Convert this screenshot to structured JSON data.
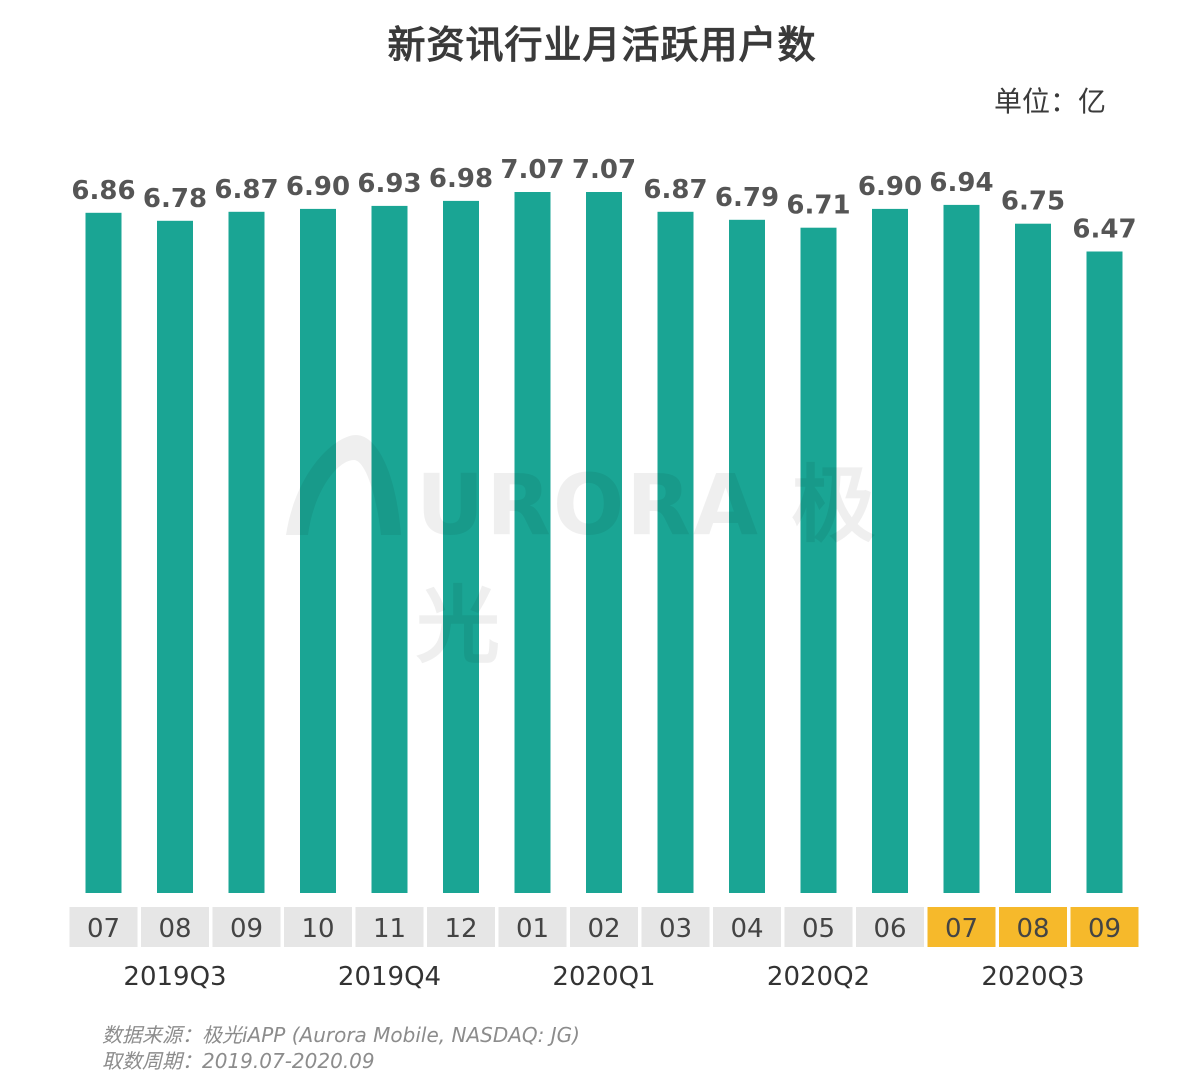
{
  "title": "新资讯行业月活跃用户数",
  "unit_label": "单位：亿",
  "colors": {
    "bar": "#1aa594",
    "label_bg": "#e6e6e6",
    "label_bg_highlight": "#f6b92b",
    "value_text": "#555555",
    "month_text": "#444444"
  },
  "chart_data": {
    "type": "bar",
    "title": "新资讯行业月活跃用户数",
    "ylabel": "单位：亿",
    "categories": [
      "07",
      "08",
      "09",
      "10",
      "11",
      "12",
      "01",
      "02",
      "03",
      "04",
      "05",
      "06",
      "07",
      "08",
      "09"
    ],
    "values": [
      6.86,
      6.78,
      6.87,
      6.9,
      6.93,
      6.98,
      7.07,
      7.07,
      6.87,
      6.79,
      6.71,
      6.9,
      6.94,
      6.75,
      6.47
    ],
    "value_labels": [
      "6.86",
      "6.78",
      "6.87",
      "6.90",
      "6.93",
      "6.98",
      "7.07",
      "7.07",
      "6.87",
      "6.79",
      "6.71",
      "6.90",
      "6.94",
      "6.75",
      "6.47"
    ],
    "highlighted_categories": [
      12,
      13,
      14
    ],
    "groups": [
      {
        "label": "2019Q3",
        "start": 0,
        "end": 2
      },
      {
        "label": "2019Q4",
        "start": 3,
        "end": 5
      },
      {
        "label": "2020Q1",
        "start": 6,
        "end": 8
      },
      {
        "label": "2020Q2",
        "start": 9,
        "end": 11
      },
      {
        "label": "2020Q3",
        "start": 12,
        "end": 14
      }
    ],
    "ylim": [
      0,
      7.07
    ],
    "grid": false,
    "legend": "none"
  },
  "watermark": {
    "text": "URORA 极光"
  },
  "source": {
    "line1": "数据来源：极光iAPP (Aurora Mobile, NASDAQ: JG)",
    "line2": "取数周期：2019.07-2020.09"
  }
}
